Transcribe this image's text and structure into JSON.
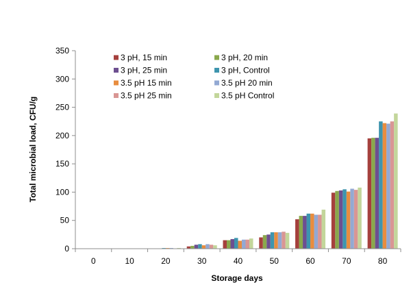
{
  "chart_data": {
    "type": "bar",
    "title": "",
    "xlabel": "Storage days",
    "ylabel": "Total microbial load, CFU/g",
    "categories": [
      "0",
      "10",
      "20",
      "30",
      "40",
      "50",
      "60",
      "70",
      "80"
    ],
    "ylim": [
      0,
      350
    ],
    "yticks": [
      "0",
      "50",
      "100",
      "150",
      "200",
      "250",
      "300",
      "350"
    ],
    "grid": false,
    "legend_position": "top-left",
    "series": [
      {
        "name": "3 pH, 15 min",
        "color": "#A5403D",
        "values": [
          0,
          0,
          0.6,
          4,
          15,
          20,
          52,
          99,
          195
        ]
      },
      {
        "name": "3 pH, 20 min",
        "color": "#8AA84C",
        "values": [
          0,
          0,
          0.6,
          5,
          15,
          24,
          58,
          102,
          196
        ]
      },
      {
        "name": "3 pH, 25 min",
        "color": "#6D4F90",
        "values": [
          0,
          0,
          0.6,
          7,
          17,
          25,
          58,
          103,
          196
        ]
      },
      {
        "name": "3 pH, Control",
        "color": "#3E95AE",
        "values": [
          0,
          0,
          1.2,
          8,
          19,
          29,
          62,
          105,
          225
        ]
      },
      {
        "name": "3.5 pH 15 min",
        "color": "#E88D3F",
        "values": [
          0,
          0,
          1.2,
          6,
          14,
          29,
          62,
          101,
          222
        ]
      },
      {
        "name": "3.5 pH 20 min",
        "color": "#93A9D3",
        "values": [
          0,
          0,
          1.2,
          8,
          16,
          29,
          60,
          106,
          221
        ]
      },
      {
        "name": "3.5 pH 25 min",
        "color": "#D99694",
        "values": [
          0,
          0,
          0.6,
          7,
          16,
          30,
          60,
          104,
          225
        ]
      },
      {
        "name": "3.5 pH Control",
        "color": "#C3D69B",
        "values": [
          0,
          0,
          1.2,
          6,
          18,
          28,
          69,
          108,
          239
        ]
      }
    ]
  }
}
